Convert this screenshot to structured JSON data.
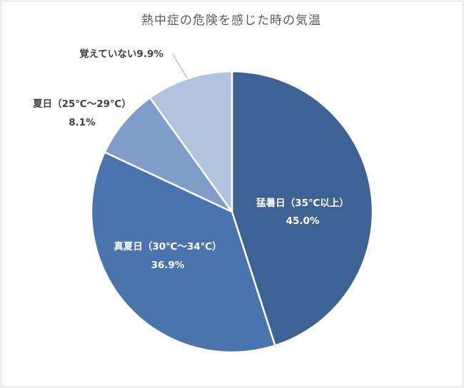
{
  "chart_data": {
    "type": "pie",
    "title": "熱中症の危険を感じた時の気温",
    "slices": [
      {
        "label": "猛暑日（35℃以上）",
        "value": 45.0,
        "value_label": "45.0%",
        "color": "#3d6293"
      },
      {
        "label": "真夏日（30℃～34℃）",
        "value": 36.9,
        "value_label": "36.9%",
        "color": "#4a74ad"
      },
      {
        "label": "夏日（25℃～29℃）",
        "value": 8.1,
        "value_label": "8.1%",
        "color": "#7f9dc9"
      },
      {
        "label": "覚えていない",
        "value": 9.9,
        "value_label": "9.9%",
        "color": "#b3c2dd"
      }
    ],
    "outside_label_combined": "覚えていない9.9%",
    "start_angle": "12 o'clock",
    "direction": "clockwise",
    "legend": "none",
    "slice_border_color": "#ffffff"
  }
}
